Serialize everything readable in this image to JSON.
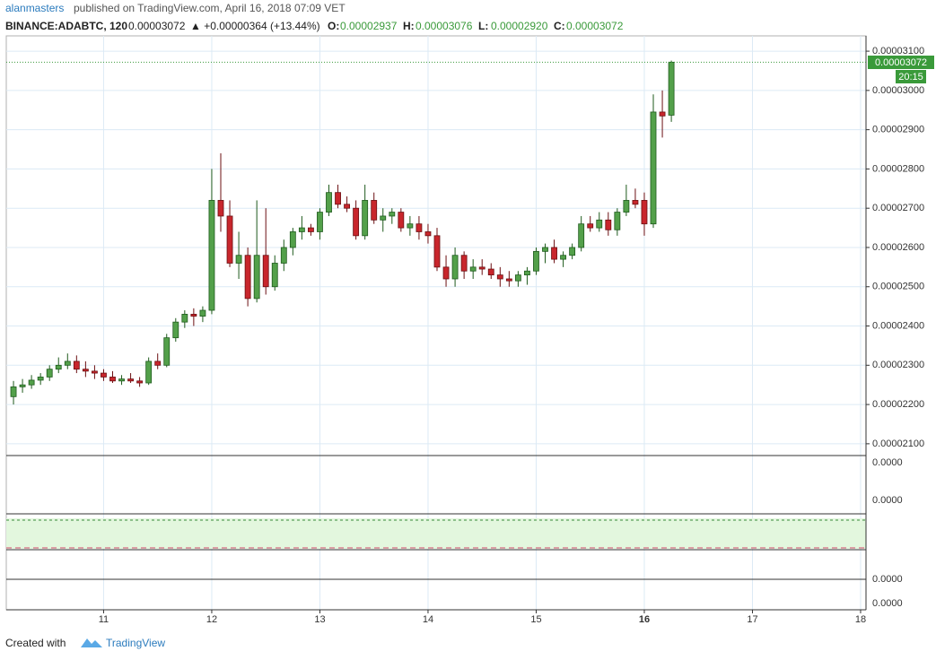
{
  "chart_data": {
    "type": "candlestick",
    "author": "alanmasters",
    "published": "published on TradingView.com, April 16, 2018 07:09 VET",
    "symbol": "BINANCE:ADABTC, 120",
    "last": "0.00003072",
    "change": "▲ +0.00000364 (+13.44%)",
    "ohlc_labels": [
      "O:",
      "H:",
      "L:",
      "C:"
    ],
    "ohlc_values": [
      "0.00002937",
      "0.00003076",
      "0.00002920",
      "0.00003072"
    ],
    "countdown": "20:15",
    "footer": "Created with",
    "brand": "TradingView",
    "pane_ticks": [
      "0.0000",
      "0.0000",
      "0.0000",
      "0.0000"
    ],
    "up_color": "#53a04a",
    "down_color": "#c8262c",
    "grid": true,
    "x": [
      10.1667,
      10.25,
      10.3333,
      10.4167,
      10.5,
      10.5833,
      10.6667,
      10.75,
      10.8333,
      10.9167,
      11,
      11.0833,
      11.1667,
      11.25,
      11.3333,
      11.4167,
      11.5,
      11.5833,
      11.6667,
      11.75,
      11.8333,
      11.9167,
      12,
      12.0833,
      12.1667,
      12.25,
      12.3333,
      12.4167,
      12.5,
      12.5833,
      12.6667,
      12.75,
      12.8333,
      12.9167,
      13,
      13.0833,
      13.1667,
      13.25,
      13.3333,
      13.4167,
      13.5,
      13.5833,
      13.6667,
      13.75,
      13.8333,
      13.9167,
      14,
      14.0833,
      14.1667,
      14.25,
      14.3333,
      14.4167,
      14.5,
      14.5833,
      14.6667,
      14.75,
      14.8333,
      14.9167,
      15,
      15.0833,
      15.1667,
      15.25,
      15.3333,
      15.4167,
      15.5,
      15.5833,
      15.6667,
      15.75,
      15.8333,
      15.9167,
      16,
      16.0833,
      16.1667,
      16.25
    ],
    "open": [
      2.22e-05,
      2.245e-05,
      2.25e-05,
      2.262e-05,
      2.27e-05,
      2.29e-05,
      2.3e-05,
      2.31e-05,
      2.29e-05,
      2.285e-05,
      2.28e-05,
      2.27e-05,
      2.26e-05,
      2.265e-05,
      2.26e-05,
      2.255e-05,
      2.31e-05,
      2.3e-05,
      2.37e-05,
      2.41e-05,
      2.43e-05,
      2.425e-05,
      2.44e-05,
      2.72e-05,
      2.68e-05,
      2.56e-05,
      2.58e-05,
      2.47e-05,
      2.58e-05,
      2.5e-05,
      2.56e-05,
      2.6e-05,
      2.64e-05,
      2.65e-05,
      2.64e-05,
      2.69e-05,
      2.74e-05,
      2.71e-05,
      2.7e-05,
      2.63e-05,
      2.72e-05,
      2.67e-05,
      2.68e-05,
      2.69e-05,
      2.65e-05,
      2.66e-05,
      2.64e-05,
      2.63e-05,
      2.55e-05,
      2.52e-05,
      2.58e-05,
      2.54e-05,
      2.55e-05,
      2.545e-05,
      2.53e-05,
      2.52e-05,
      2.515e-05,
      2.53e-05,
      2.54e-05,
      2.59e-05,
      2.6e-05,
      2.57e-05,
      2.58e-05,
      2.6e-05,
      2.66e-05,
      2.65e-05,
      2.67e-05,
      2.645e-05,
      2.69e-05,
      2.72e-05,
      2.72e-05,
      2.66e-05,
      2.945e-05,
      2.937e-05
    ],
    "high": [
      2.26e-05,
      2.265e-05,
      2.275e-05,
      2.28e-05,
      2.3e-05,
      2.32e-05,
      2.33e-05,
      2.325e-05,
      2.31e-05,
      2.3e-05,
      2.29e-05,
      2.285e-05,
      2.275e-05,
      2.28e-05,
      2.27e-05,
      2.32e-05,
      2.33e-05,
      2.38e-05,
      2.42e-05,
      2.44e-05,
      2.445e-05,
      2.45e-05,
      2.8e-05,
      2.84e-05,
      2.72e-05,
      2.64e-05,
      2.6e-05,
      2.72e-05,
      2.7e-05,
      2.58e-05,
      2.62e-05,
      2.65e-05,
      2.68e-05,
      2.66e-05,
      2.7e-05,
      2.76e-05,
      2.76e-05,
      2.73e-05,
      2.72e-05,
      2.76e-05,
      2.74e-05,
      2.7e-05,
      2.7e-05,
      2.7e-05,
      2.68e-05,
      2.68e-05,
      2.66e-05,
      2.65e-05,
      2.58e-05,
      2.6e-05,
      2.59e-05,
      2.57e-05,
      2.57e-05,
      2.56e-05,
      2.55e-05,
      2.54e-05,
      2.54e-05,
      2.55e-05,
      2.6e-05,
      2.61e-05,
      2.62e-05,
      2.59e-05,
      2.61e-05,
      2.68e-05,
      2.68e-05,
      2.69e-05,
      2.69e-05,
      2.7e-05,
      2.76e-05,
      2.75e-05,
      2.74e-05,
      2.99e-05,
      3e-05,
      3.076e-05
    ],
    "low": [
      2.2e-05,
      2.23e-05,
      2.24e-05,
      2.25e-05,
      2.26e-05,
      2.28e-05,
      2.29e-05,
      2.28e-05,
      2.27e-05,
      2.265e-05,
      2.26e-05,
      2.255e-05,
      2.25e-05,
      2.255e-05,
      2.245e-05,
      2.25e-05,
      2.29e-05,
      2.295e-05,
      2.36e-05,
      2.395e-05,
      2.4e-05,
      2.41e-05,
      2.43e-05,
      2.64e-05,
      2.55e-05,
      2.52e-05,
      2.45e-05,
      2.46e-05,
      2.48e-05,
      2.49e-05,
      2.54e-05,
      2.58e-05,
      2.62e-05,
      2.63e-05,
      2.62e-05,
      2.68e-05,
      2.7e-05,
      2.69e-05,
      2.62e-05,
      2.62e-05,
      2.66e-05,
      2.64e-05,
      2.66e-05,
      2.64e-05,
      2.63e-05,
      2.62e-05,
      2.61e-05,
      2.54e-05,
      2.5e-05,
      2.5e-05,
      2.52e-05,
      2.52e-05,
      2.53e-05,
      2.52e-05,
      2.5e-05,
      2.5e-05,
      2.5e-05,
      2.505e-05,
      2.53e-05,
      2.56e-05,
      2.56e-05,
      2.55e-05,
      2.57e-05,
      2.59e-05,
      2.64e-05,
      2.64e-05,
      2.63e-05,
      2.63e-05,
      2.68e-05,
      2.7e-05,
      2.63e-05,
      2.65e-05,
      2.88e-05,
      2.92e-05
    ],
    "close": [
      2.245e-05,
      2.25e-05,
      2.262e-05,
      2.27e-05,
      2.29e-05,
      2.3e-05,
      2.31e-05,
      2.29e-05,
      2.285e-05,
      2.28e-05,
      2.27e-05,
      2.26e-05,
      2.265e-05,
      2.26e-05,
      2.255e-05,
      2.31e-05,
      2.3e-05,
      2.37e-05,
      2.41e-05,
      2.43e-05,
      2.425e-05,
      2.44e-05,
      2.72e-05,
      2.68e-05,
      2.56e-05,
      2.58e-05,
      2.47e-05,
      2.58e-05,
      2.5e-05,
      2.56e-05,
      2.6e-05,
      2.64e-05,
      2.65e-05,
      2.64e-05,
      2.69e-05,
      2.74e-05,
      2.71e-05,
      2.7e-05,
      2.63e-05,
      2.72e-05,
      2.67e-05,
      2.68e-05,
      2.69e-05,
      2.65e-05,
      2.66e-05,
      2.64e-05,
      2.63e-05,
      2.55e-05,
      2.52e-05,
      2.58e-05,
      2.54e-05,
      2.55e-05,
      2.545e-05,
      2.53e-05,
      2.52e-05,
      2.515e-05,
      2.53e-05,
      2.54e-05,
      2.59e-05,
      2.6e-05,
      2.57e-05,
      2.58e-05,
      2.6e-05,
      2.66e-05,
      2.65e-05,
      2.67e-05,
      2.645e-05,
      2.69e-05,
      2.72e-05,
      2.71e-05,
      2.66e-05,
      2.945e-05,
      2.935e-05,
      3.072e-05
    ],
    "xlim": [
      10.1,
      18.05
    ],
    "xticks": [
      11,
      12,
      13,
      14,
      15,
      16,
      17,
      18
    ],
    "ylim": [
      2.07e-05,
      3.139e-05
    ],
    "yticks": [
      {
        "value": 2.1e-05,
        "label": "0.00002100"
      },
      {
        "value": 2.2e-05,
        "label": "0.00002200"
      },
      {
        "value": 2.3e-05,
        "label": "0.00002300"
      },
      {
        "value": 2.4e-05,
        "label": "0.00002400"
      },
      {
        "value": 2.5e-05,
        "label": "0.00002500"
      },
      {
        "value": 2.6e-05,
        "label": "0.00002600"
      },
      {
        "value": 2.7e-05,
        "label": "0.00002700"
      },
      {
        "value": 2.8e-05,
        "label": "0.00002800"
      },
      {
        "value": 2.9e-05,
        "label": "0.00002900"
      },
      {
        "value": 3e-05,
        "label": "0.00003000"
      },
      {
        "value": 3.1e-05,
        "label": "0.00003100"
      }
    ]
  }
}
